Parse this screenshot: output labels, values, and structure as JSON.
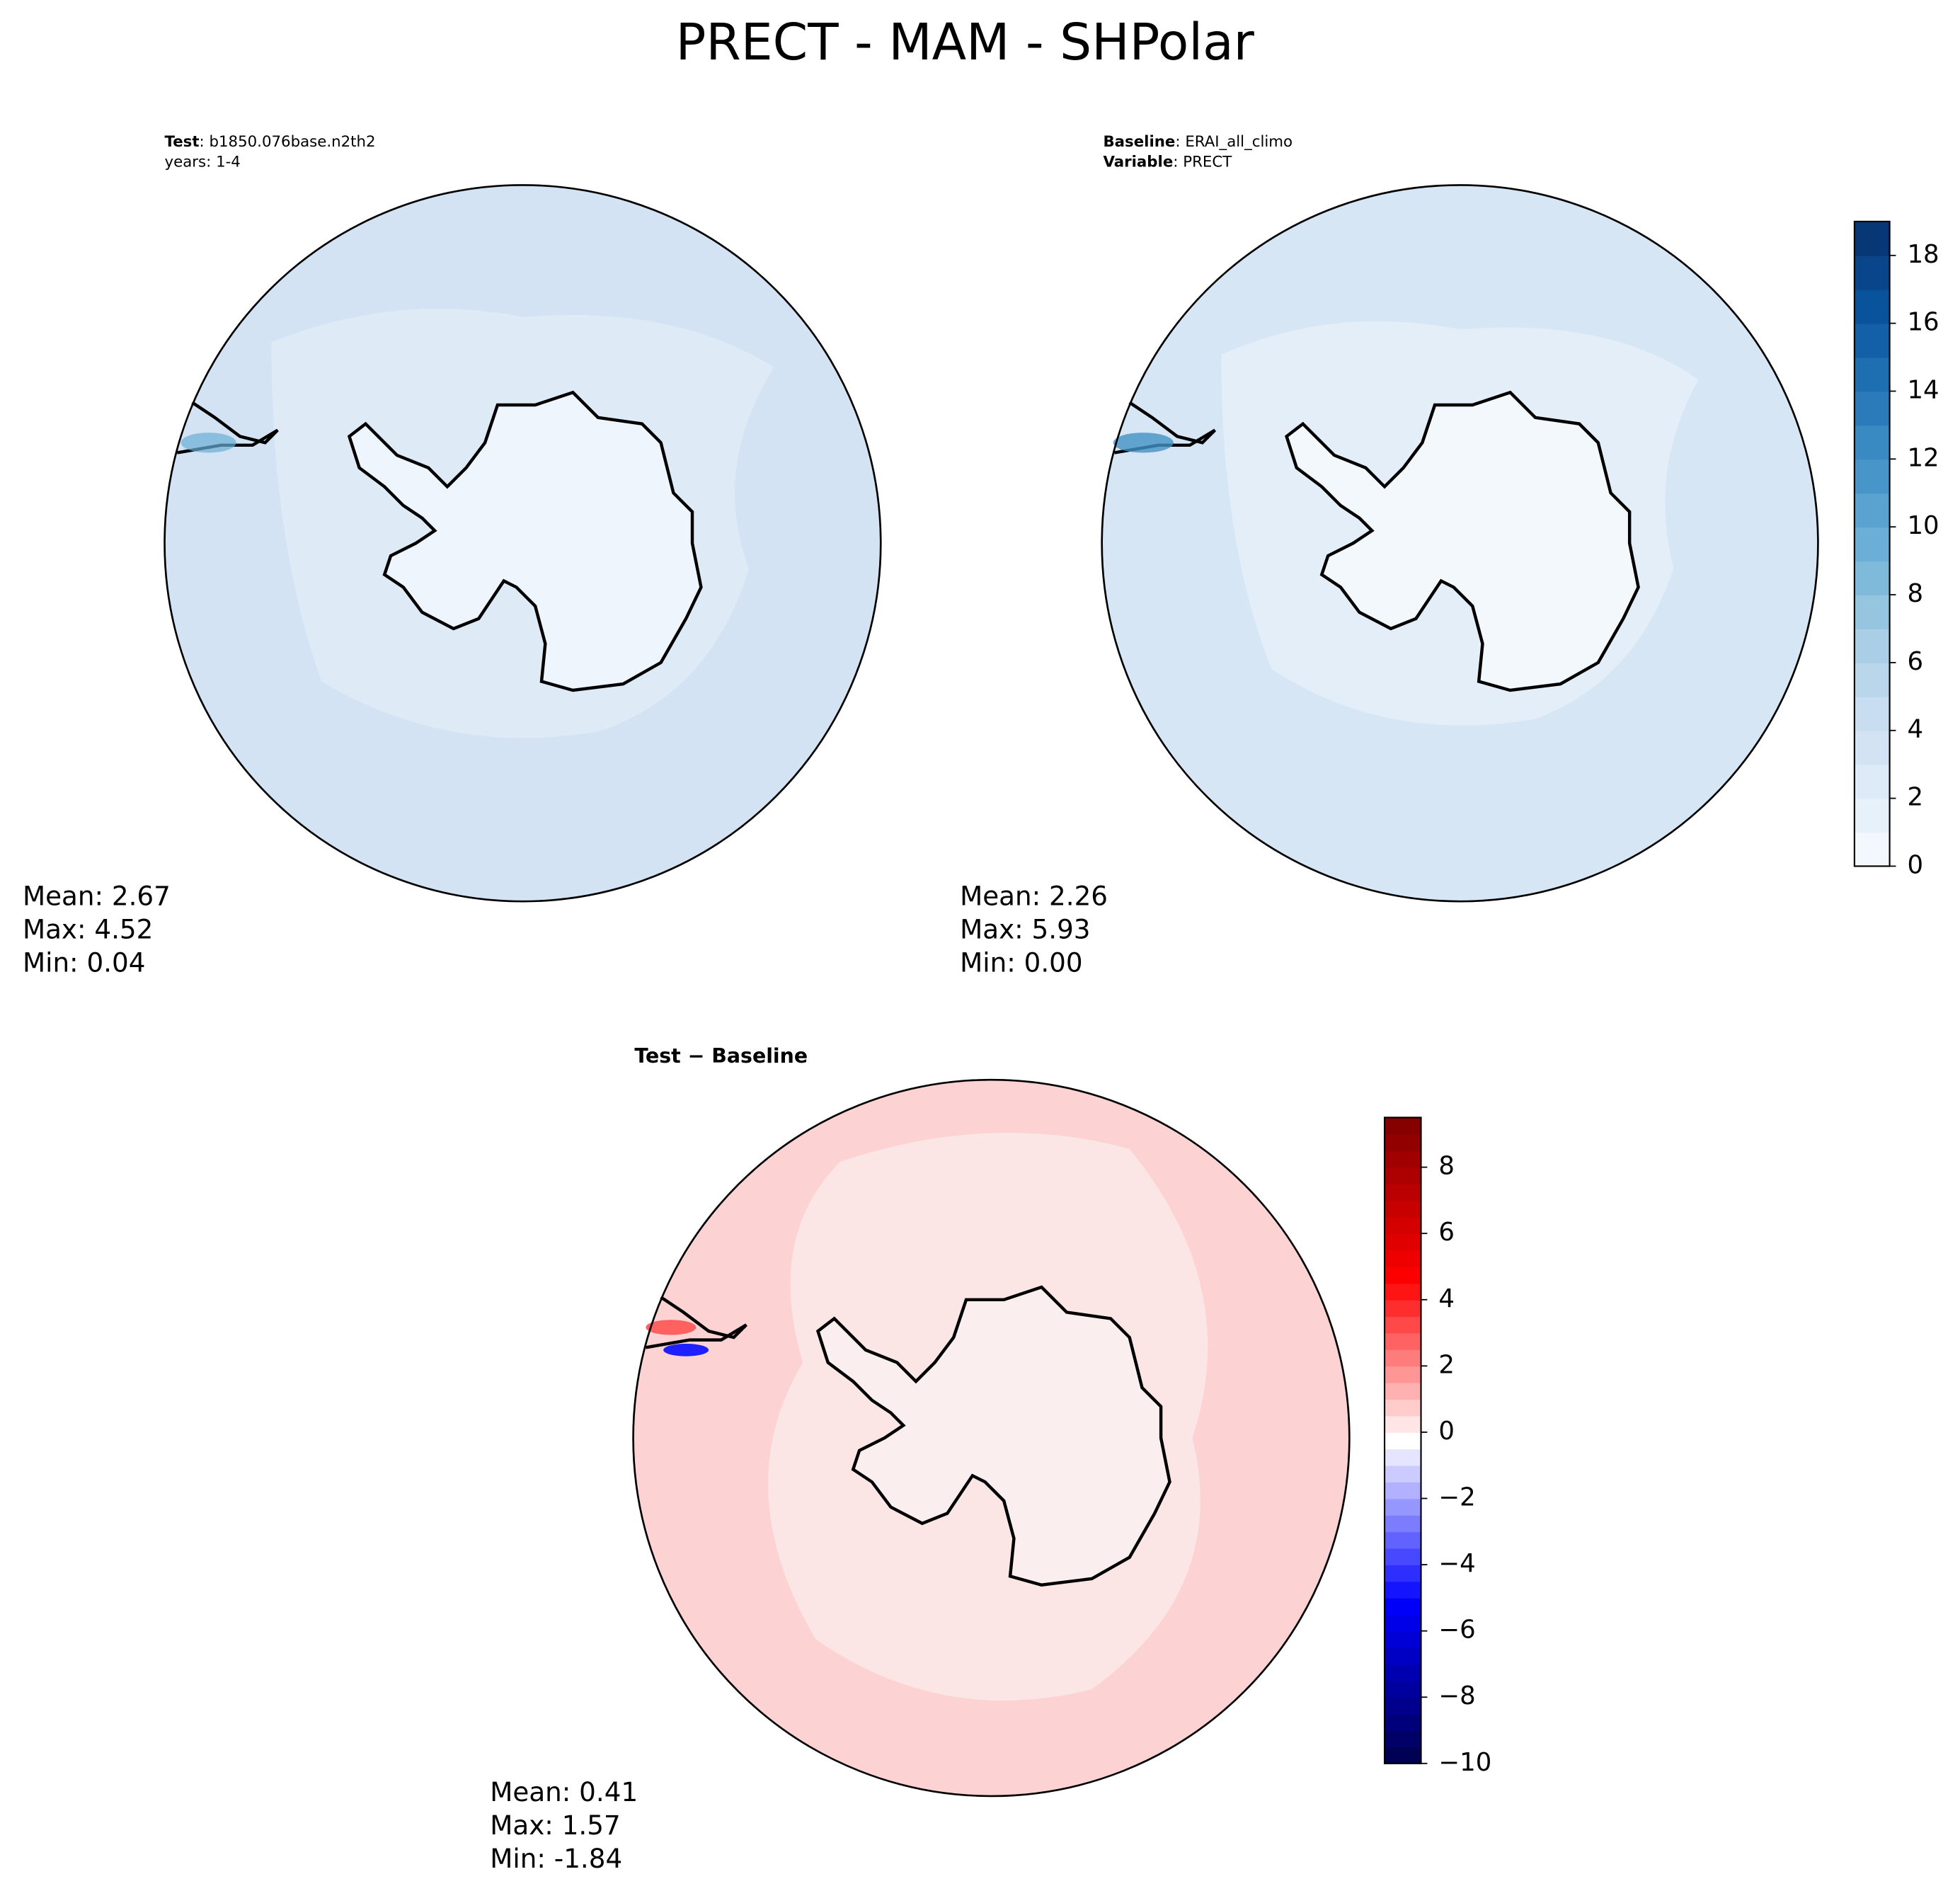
{
  "title": "PRECT - MAM - SHPolar",
  "panels": [
    {
      "header": [
        {
          "bold": "Test",
          "text": ": b1850.076base.n2th2"
        },
        {
          "text": "years: 1-4"
        }
      ],
      "stats": [
        "Mean:  2.67",
        "Max:  4.52",
        "Min:  0.04"
      ]
    },
    {
      "header": [
        {
          "bold": "Baseline",
          "text": ": ERAI_all_climo"
        },
        {
          "bold": "Variable",
          "text": ": PRECT"
        }
      ],
      "stats": [
        "Mean:  2.26",
        "Max:  5.93",
        "Min:  0.00"
      ]
    },
    {
      "header": [
        {
          "bold": "Test − Baseline"
        }
      ],
      "stats": [
        "Mean:  0.41",
        "Max:  1.57",
        "Min: -1.84"
      ]
    }
  ],
  "colorbars": [
    {
      "cmap_colors": [
        "#f7fbff",
        "#deebf7",
        "#c6dbef",
        "#9ecae1",
        "#6baed6",
        "#4292c6",
        "#2171b5",
        "#08519c",
        "#08306b"
      ],
      "ylim": [
        0,
        19
      ],
      "level_step": 1,
      "yticks": [
        0,
        2,
        4,
        6,
        8,
        10,
        12,
        14,
        16,
        18
      ]
    },
    {
      "cmap_colors": [
        "#00004c",
        "#0000ff",
        "#ffffff",
        "#ff0000",
        "#7f0000"
      ],
      "ylim": [
        -10,
        9.5
      ],
      "level_step": 0.5,
      "yticks": [
        {
          "value": -10,
          "label": "−10"
        },
        {
          "value": -8,
          "label": "−8"
        },
        {
          "value": -6,
          "label": "−6"
        },
        {
          "value": -4,
          "label": "−4"
        },
        {
          "value": -2,
          "label": "−2"
        },
        0,
        2,
        4,
        6,
        8
      ]
    }
  ]
}
